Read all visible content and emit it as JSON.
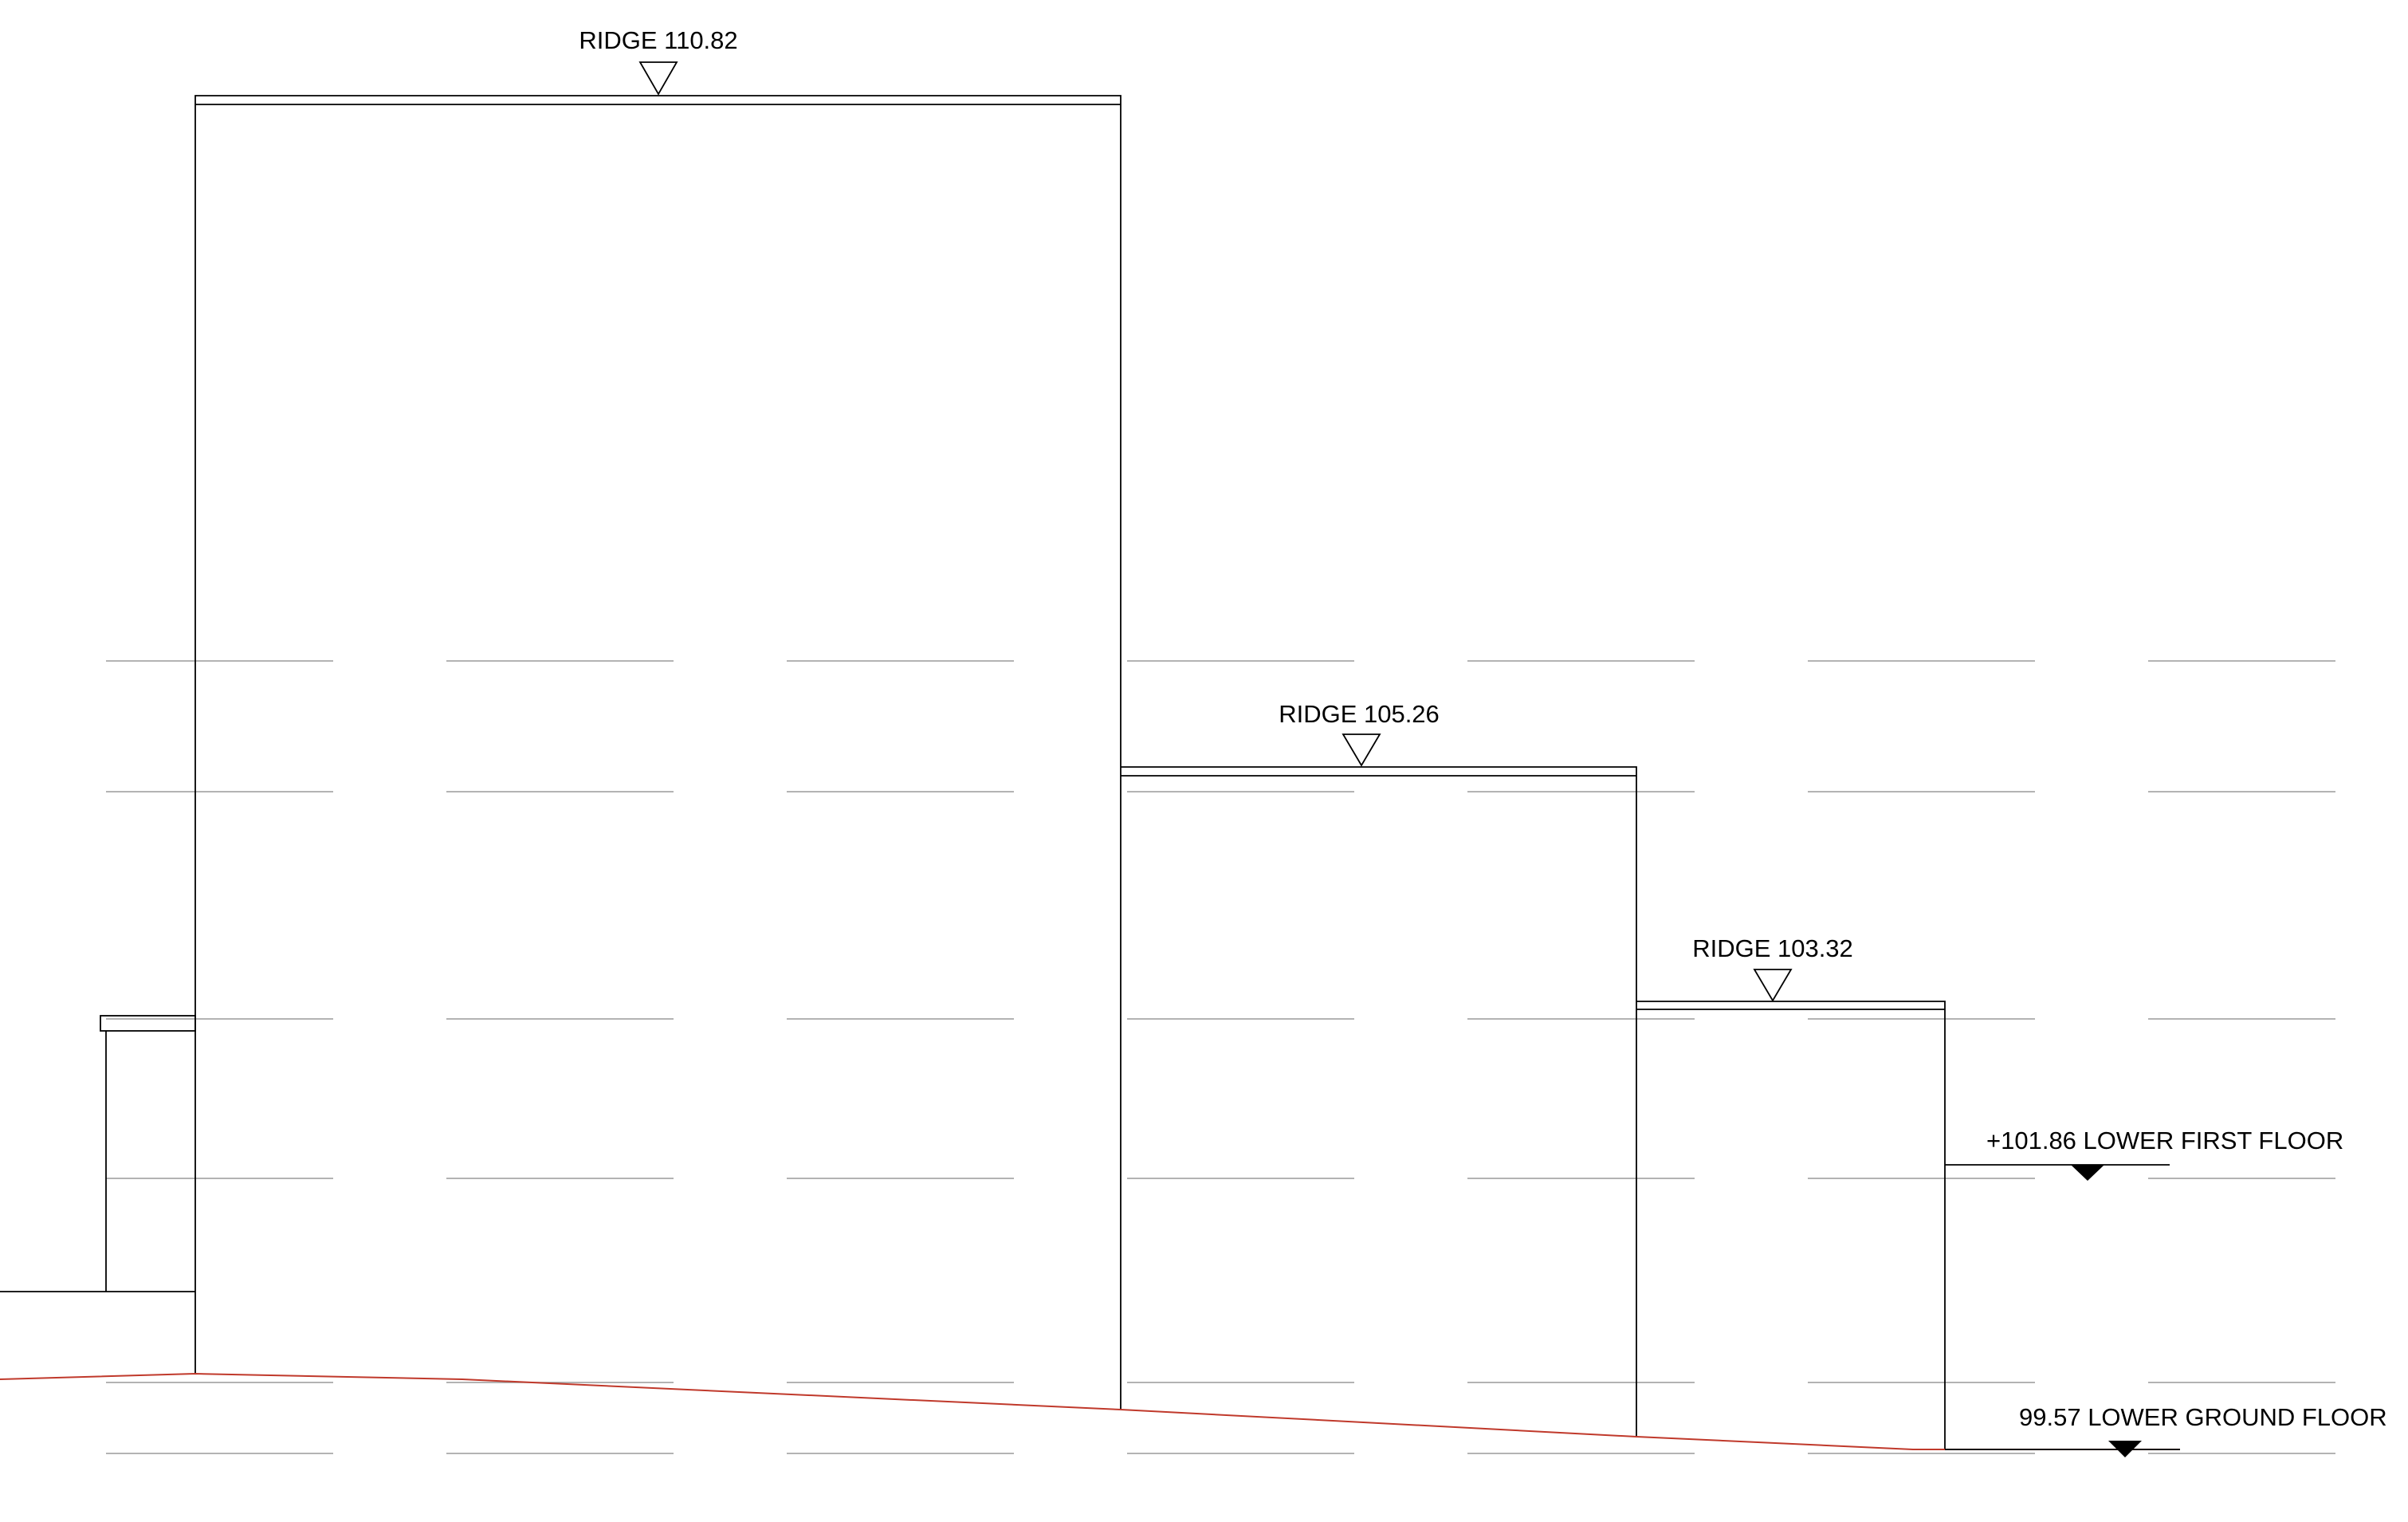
{
  "levels": {
    "ridge_main": "RIDGE 110.82",
    "ridge_middle": "RIDGE 105.26",
    "ridge_low": "RIDGE 103.32",
    "lower_first_floor": "+101.86 LOWER FIRST FLOOR",
    "lower_ground_floor": "99.57 LOWER GROUND FLOOR"
  },
  "colors": {
    "outline": "#000000",
    "ghost_lines": "#9a9a9a",
    "ground_line": "#c0392b"
  }
}
